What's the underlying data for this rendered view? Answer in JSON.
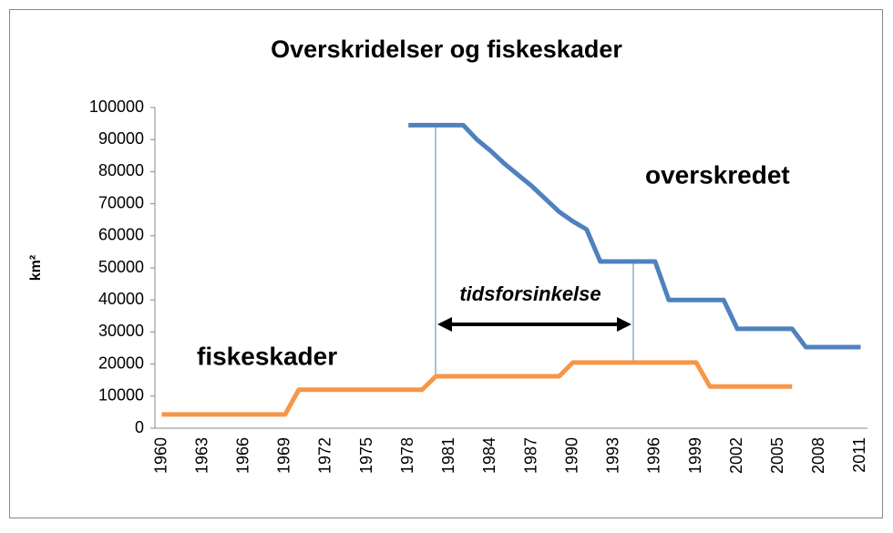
{
  "chart_data": {
    "type": "line",
    "title": "Overskridelser og fiskeskader",
    "y_label": "km²",
    "categories": [
      "1960",
      null,
      null,
      "1963",
      null,
      null,
      "1966",
      null,
      null,
      "1969",
      null,
      null,
      "1972",
      null,
      null,
      "1975",
      null,
      null,
      "1978",
      null,
      null,
      "1981",
      null,
      null,
      "1984",
      null,
      null,
      "1987",
      null,
      null,
      "1990",
      null,
      null,
      "1993",
      null,
      null,
      "1996",
      null,
      null,
      "1999",
      null,
      null,
      "2002",
      null,
      null,
      "2005",
      null,
      null,
      "2008",
      null,
      null,
      "2011"
    ],
    "series": [
      {
        "color": "#4f81bd",
        "values": [
          null,
          null,
          null,
          null,
          null,
          null,
          null,
          null,
          null,
          null,
          null,
          null,
          null,
          null,
          null,
          null,
          null,
          null,
          94500,
          94500,
          94500,
          94500,
          94500,
          90000,
          86500,
          82500,
          79000,
          75500,
          71500,
          67500,
          64500,
          62000,
          52000,
          52000,
          52000,
          52000,
          52000,
          40000,
          40000,
          40000,
          40000,
          40000,
          31000,
          31000,
          31000,
          31000,
          31000,
          25300,
          25300,
          25300,
          25300,
          25300
        ]
      },
      {
        "color": "#f79646",
        "values": [
          4300,
          4300,
          4300,
          4300,
          4300,
          4300,
          4300,
          4300,
          4300,
          4300,
          12000,
          12000,
          12000,
          12000,
          12000,
          12000,
          12000,
          12000,
          12000,
          12000,
          16200,
          16200,
          16200,
          16200,
          16200,
          16200,
          16200,
          16200,
          16200,
          16200,
          20500,
          20500,
          20500,
          20500,
          20500,
          20500,
          20500,
          20500,
          20500,
          20500,
          13000,
          13000,
          13000,
          13000,
          13000,
          13000,
          13000,
          null,
          null,
          null,
          null,
          null
        ]
      }
    ],
    "annotations": [
      "overskredet",
      "fiskeskader",
      "tidsforsinkelse"
    ],
    "ylim": [
      0,
      100000
    ],
    "yticks": [
      0,
      10000,
      20000,
      30000,
      40000,
      50000,
      60000,
      70000,
      80000,
      90000,
      100000
    ]
  }
}
